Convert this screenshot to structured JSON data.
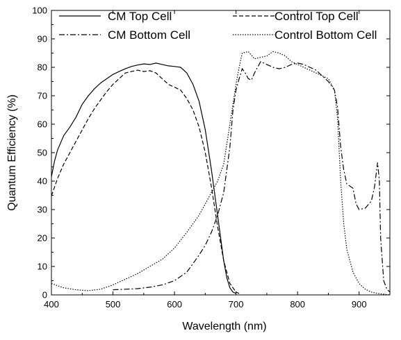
{
  "chart_data": {
    "type": "line",
    "title": "",
    "xlabel": "Wavelength (nm)",
    "ylabel": "Quantum Efficiency (%)",
    "xlim": [
      400,
      950
    ],
    "ylim": [
      0,
      100
    ],
    "x_ticks": [
      400,
      500,
      600,
      700,
      800,
      900
    ],
    "y_ticks": [
      0,
      10,
      20,
      30,
      40,
      50,
      60,
      70,
      80,
      90,
      100
    ],
    "x_tick_labels": [
      "400",
      "500",
      "600",
      "700",
      "800",
      "900"
    ],
    "y_tick_labels": [
      "0",
      "10",
      "20",
      "30",
      "40",
      "50",
      "60",
      "70",
      "80",
      "90",
      "100"
    ],
    "grid": false,
    "legend_position": "top",
    "series": [
      {
        "name": "CM Top Cell",
        "dash": "solid",
        "points": [
          [
            400,
            41.5
          ],
          [
            405,
            47
          ],
          [
            410,
            51
          ],
          [
            420,
            56
          ],
          [
            430,
            59
          ],
          [
            440,
            62.5
          ],
          [
            450,
            67
          ],
          [
            460,
            70
          ],
          [
            470,
            72.5
          ],
          [
            480,
            74.5
          ],
          [
            490,
            76
          ],
          [
            500,
            77.5
          ],
          [
            510,
            78.5
          ],
          [
            520,
            79.5
          ],
          [
            530,
            80.3
          ],
          [
            540,
            80.8
          ],
          [
            550,
            81.2
          ],
          [
            560,
            81
          ],
          [
            570,
            81.5
          ],
          [
            580,
            81
          ],
          [
            590,
            80.5
          ],
          [
            600,
            80.3
          ],
          [
            610,
            80
          ],
          [
            620,
            78
          ],
          [
            630,
            74
          ],
          [
            640,
            68
          ],
          [
            650,
            58
          ],
          [
            660,
            44
          ],
          [
            670,
            28
          ],
          [
            675,
            20
          ],
          [
            680,
            12
          ],
          [
            685,
            6
          ],
          [
            690,
            2.5
          ],
          [
            695,
            1
          ],
          [
            700,
            0.5
          ]
        ]
      },
      {
        "name": "Control Top Cell",
        "dash": "dashed",
        "points": [
          [
            400,
            34.8
          ],
          [
            410,
            41
          ],
          [
            420,
            46
          ],
          [
            430,
            50
          ],
          [
            440,
            54
          ],
          [
            450,
            58
          ],
          [
            460,
            62
          ],
          [
            470,
            65.5
          ],
          [
            480,
            68.5
          ],
          [
            490,
            71.5
          ],
          [
            500,
            74
          ],
          [
            510,
            76
          ],
          [
            520,
            78
          ],
          [
            530,
            78.5
          ],
          [
            540,
            79
          ],
          [
            550,
            78.5
          ],
          [
            560,
            78.8
          ],
          [
            570,
            78
          ],
          [
            580,
            76
          ],
          [
            590,
            74
          ],
          [
            600,
            73
          ],
          [
            610,
            72
          ],
          [
            620,
            69
          ],
          [
            630,
            65
          ],
          [
            640,
            59
          ],
          [
            650,
            50
          ],
          [
            660,
            38
          ],
          [
            670,
            24
          ],
          [
            680,
            12
          ],
          [
            690,
            4
          ],
          [
            700,
            1
          ],
          [
            705,
            0.5
          ]
        ]
      },
      {
        "name": "CM Bottom Cell",
        "dash": "dashdot",
        "points": [
          [
            500,
            1.8
          ],
          [
            520,
            2
          ],
          [
            540,
            2.2
          ],
          [
            560,
            2.7
          ],
          [
            580,
            3.5
          ],
          [
            600,
            5
          ],
          [
            620,
            8
          ],
          [
            640,
            14
          ],
          [
            650,
            17.5
          ],
          [
            660,
            22
          ],
          [
            670,
            28
          ],
          [
            680,
            36
          ],
          [
            690,
            52
          ],
          [
            695,
            65
          ],
          [
            700,
            72
          ],
          [
            705,
            76
          ],
          [
            710,
            79.5
          ],
          [
            715,
            78
          ],
          [
            720,
            76
          ],
          [
            725,
            75.5
          ],
          [
            730,
            78
          ],
          [
            740,
            82
          ],
          [
            750,
            81
          ],
          [
            760,
            80
          ],
          [
            770,
            79.5
          ],
          [
            780,
            80
          ],
          [
            790,
            81
          ],
          [
            800,
            81.5
          ],
          [
            810,
            81
          ],
          [
            820,
            80
          ],
          [
            830,
            79
          ],
          [
            840,
            77
          ],
          [
            850,
            75
          ],
          [
            860,
            72
          ],
          [
            865,
            66
          ],
          [
            870,
            52
          ],
          [
            875,
            44
          ],
          [
            880,
            39
          ],
          [
            890,
            37.5
          ],
          [
            895,
            32
          ],
          [
            900,
            30
          ],
          [
            910,
            30.5
          ],
          [
            920,
            33
          ],
          [
            925,
            38
          ],
          [
            930,
            46.5
          ],
          [
            933,
            40
          ],
          [
            935,
            20
          ],
          [
            940,
            5
          ],
          [
            945,
            2
          ],
          [
            950,
            1
          ]
        ]
      },
      {
        "name": "Control Bottom Cell",
        "dash": "dotted",
        "points": [
          [
            400,
            4
          ],
          [
            420,
            2.5
          ],
          [
            440,
            1.8
          ],
          [
            460,
            1.5
          ],
          [
            480,
            2
          ],
          [
            500,
            3.5
          ],
          [
            520,
            5.5
          ],
          [
            540,
            7.5
          ],
          [
            560,
            10
          ],
          [
            580,
            12.5
          ],
          [
            600,
            16.5
          ],
          [
            620,
            22
          ],
          [
            640,
            28
          ],
          [
            660,
            36
          ],
          [
            670,
            40
          ],
          [
            680,
            46
          ],
          [
            690,
            60
          ],
          [
            700,
            74
          ],
          [
            705,
            80
          ],
          [
            710,
            85
          ],
          [
            720,
            85.5
          ],
          [
            730,
            83
          ],
          [
            740,
            83.5
          ],
          [
            750,
            84
          ],
          [
            760,
            85.5
          ],
          [
            770,
            85
          ],
          [
            780,
            84
          ],
          [
            790,
            82
          ],
          [
            800,
            81
          ],
          [
            810,
            80
          ],
          [
            820,
            79
          ],
          [
            830,
            78
          ],
          [
            840,
            77
          ],
          [
            850,
            76
          ],
          [
            860,
            72
          ],
          [
            865,
            62
          ],
          [
            870,
            40
          ],
          [
            875,
            25
          ],
          [
            880,
            16
          ],
          [
            890,
            8
          ],
          [
            900,
            4
          ],
          [
            910,
            2
          ],
          [
            920,
            1
          ],
          [
            930,
            0.5
          ],
          [
            950,
            0
          ]
        ]
      }
    ]
  }
}
